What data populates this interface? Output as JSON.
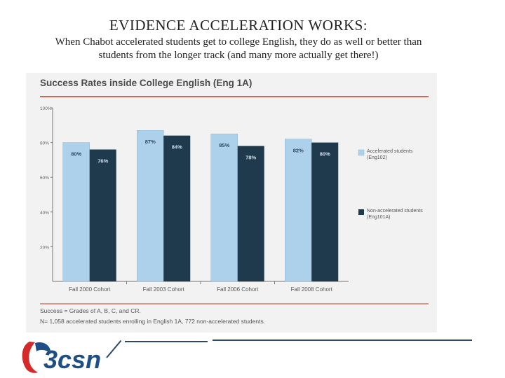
{
  "slide": {
    "title": "EVIDENCE ACCELERATION WORKS:",
    "subtitle_line1": "When Chabot accelerated students get to college English, they do as well or better than",
    "subtitle_line2": "students from the longer track (and many more actually get there!)"
  },
  "chart_data": {
    "type": "bar",
    "title": "Success Rates inside College English (Eng 1A)",
    "categories": [
      "Fall 2000 Cohort",
      "Fall 2003 Cohort",
      "Fall 2006 Cohort",
      "Fall 2008 Cohort"
    ],
    "series": [
      {
        "name": "Accelerated students (Eng102)",
        "values": [
          80,
          87,
          85,
          82
        ],
        "labels": [
          "80%",
          "87%",
          "85%",
          "82%"
        ],
        "color": "#aed1eb"
      },
      {
        "name": "Non-accelerated students (Eng101A)",
        "values": [
          76,
          84,
          78,
          80
        ],
        "labels": [
          "76%",
          "84%",
          "78%",
          "80%"
        ],
        "color": "#1f3a4d"
      }
    ],
    "ylim": [
      0,
      100
    ],
    "yticks": [
      20,
      40,
      60,
      80,
      100
    ],
    "ytick_labels": [
      "20%",
      "40%",
      "60%",
      "80%",
      "100%"
    ],
    "grid": false,
    "legend_position": "right",
    "notes": [
      "Success = Grades of A, B, C, and CR.",
      "N= 1,058 accelerated students enrolling in English 1A, 772 non-accelerated students."
    ]
  },
  "logo": {
    "text": "3csn",
    "red": "#d42a2a",
    "blue": "#1d4f86"
  },
  "colors": {
    "accent_line": "#c0392b",
    "footer_line": "#2c4a66"
  }
}
